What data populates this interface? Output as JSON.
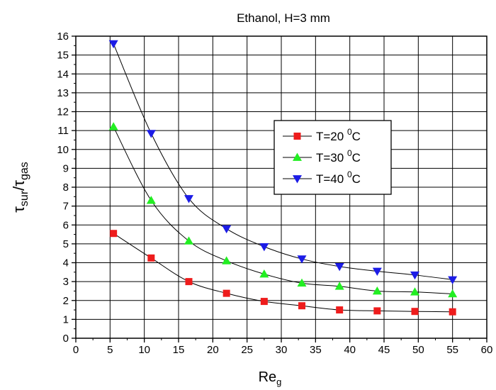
{
  "chart_data": {
    "type": "line",
    "title": "Ethanol, H=3 mm",
    "xlabel": {
      "main": "Re",
      "sub": "g"
    },
    "ylabel": {
      "main1": "τ",
      "sub1": "sur",
      "slash": "/",
      "main2": "τ",
      "sub2": "gas"
    },
    "xlim": [
      0,
      60
    ],
    "ylim": [
      0,
      16
    ],
    "xticks": [
      0,
      5,
      10,
      15,
      20,
      25,
      30,
      35,
      40,
      45,
      50,
      55,
      60
    ],
    "yticks": [
      0,
      1,
      2,
      3,
      4,
      5,
      6,
      7,
      8,
      9,
      10,
      11,
      12,
      13,
      14,
      15,
      16
    ],
    "grid": true,
    "legend_position": "right-center",
    "series": [
      {
        "name": "T=20 ⁰C",
        "label_main": "T=20 ",
        "label_sup": "0",
        "label_tail": "C",
        "color": "#ee1c1c",
        "marker": "square",
        "x": [
          5.5,
          11.0,
          16.5,
          22.0,
          27.5,
          33.0,
          38.5,
          44.0,
          49.5,
          55.0
        ],
        "y": [
          5.55,
          4.25,
          3.0,
          2.38,
          1.95,
          1.72,
          1.5,
          1.45,
          1.42,
          1.4
        ]
      },
      {
        "name": "T=30 ⁰C",
        "label_main": "T=30 ",
        "label_sup": "0",
        "label_tail": "C",
        "color": "#22ee22",
        "marker": "triangle-up",
        "x": [
          5.5,
          11.0,
          16.5,
          22.0,
          27.5,
          33.0,
          38.5,
          44.0,
          49.5,
          55.0
        ],
        "y": [
          11.2,
          7.3,
          5.15,
          4.1,
          3.4,
          2.92,
          2.75,
          2.5,
          2.45,
          2.35
        ]
      },
      {
        "name": "T=40 ⁰C",
        "label_main": "T=40 ",
        "label_sup": "0",
        "label_tail": "C",
        "color": "#1c1ce6",
        "marker": "triangle-down",
        "x": [
          5.5,
          11.0,
          16.5,
          22.0,
          27.5,
          33.0,
          38.5,
          44.0,
          49.5,
          55.0
        ],
        "y": [
          15.6,
          10.85,
          7.4,
          5.8,
          4.85,
          4.2,
          3.8,
          3.55,
          3.35,
          3.1
        ]
      }
    ]
  }
}
